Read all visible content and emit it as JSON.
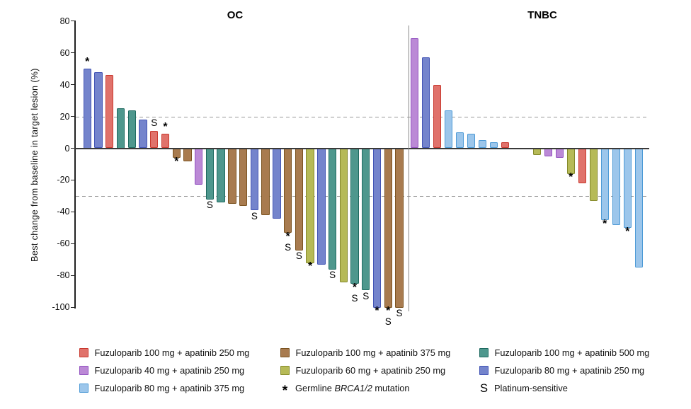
{
  "chart_data": {
    "type": "bar",
    "subtype": "waterfall",
    "title": "",
    "ylabel": "Best change from baseline in target lesion (%)",
    "ylim": [
      -100,
      80
    ],
    "yticks": [
      80,
      60,
      40,
      20,
      0,
      -20,
      -40,
      -60,
      -80,
      -100
    ],
    "reference_lines": [
      20,
      -30
    ],
    "grid": false,
    "groups": [
      {
        "label": "Fuzuloparib 100 mg + apatinib 250 mg",
        "fill": "#e0726b",
        "border": "#c9392f"
      },
      {
        "label": "Fuzuloparib 100 mg + apatinib 375 mg",
        "fill": "#a87b4f",
        "border": "#7b5320"
      },
      {
        "label": "Fuzuloparib 100 mg + apatinib 500 mg",
        "fill": "#4e978d",
        "border": "#1f6b61"
      },
      {
        "label": "Fuzuloparib 40 mg + apatinib 250 mg",
        "fill": "#bb89d6",
        "border": "#9252c0"
      },
      {
        "label": "Fuzuloparib 60 mg + apatinib 250 mg",
        "fill": "#b6ba57",
        "border": "#84892a"
      },
      {
        "label": "Fuzuloparib 80 mg + apatinib 250 mg",
        "fill": "#7484cc",
        "border": "#4254b5"
      },
      {
        "label": "Fuzuloparib 80 mg + apatinib 375 mg",
        "fill": "#9cc6eb",
        "border": "#4d9ad6"
      }
    ],
    "markers": {
      "asterisk": {
        "glyph": "*",
        "label_parts": [
          {
            "text": "Germline "
          },
          {
            "text": "BRCA1/2",
            "italic": true
          },
          {
            "text": " mutation"
          }
        ]
      },
      "platinum": {
        "glyph": "S",
        "label_parts": [
          {
            "text": "Platinum-sensitive"
          }
        ]
      }
    },
    "panels": [
      {
        "title": "OC",
        "bars": [
          {
            "group": 5,
            "value": 50,
            "mark": "*",
            "mark_position": "above"
          },
          {
            "group": 5,
            "value": 48
          },
          {
            "group": 0,
            "value": 46
          },
          {
            "group": 2,
            "value": 25
          },
          {
            "group": 2,
            "value": 24
          },
          {
            "group": 5,
            "value": 18
          },
          {
            "group": 0,
            "value": 11,
            "mark": "S",
            "mark_position": "above"
          },
          {
            "group": 0,
            "value": 9,
            "mark": "*",
            "mark_position": "above"
          },
          {
            "group": 1,
            "value": -6,
            "mark": "*",
            "mark_position": "below"
          },
          {
            "group": 1,
            "value": -8
          },
          {
            "group": 3,
            "value": -23
          },
          {
            "group": 2,
            "value": -32,
            "mark": "S",
            "mark_position": "below"
          },
          {
            "group": 2,
            "value": -34
          },
          {
            "group": 1,
            "value": -35
          },
          {
            "group": 1,
            "value": -36
          },
          {
            "group": 5,
            "value": -39,
            "mark": "S",
            "mark_position": "below"
          },
          {
            "group": 1,
            "value": -42
          },
          {
            "group": 5,
            "value": -44
          },
          {
            "group": 1,
            "value": -53,
            "mark": "*S",
            "mark_position": "below"
          },
          {
            "group": 1,
            "value": -64,
            "mark": "S",
            "mark_position": "below"
          },
          {
            "group": 4,
            "value": -72,
            "mark": "*",
            "mark_position": "below"
          },
          {
            "group": 5,
            "value": -73
          },
          {
            "group": 2,
            "value": -76,
            "mark": "S",
            "mark_position": "below"
          },
          {
            "group": 4,
            "value": -84
          },
          {
            "group": 2,
            "value": -85,
            "mark": "*S",
            "mark_position": "below"
          },
          {
            "group": 2,
            "value": -89,
            "mark": "S",
            "mark_position": "below"
          },
          {
            "group": 5,
            "value": -100,
            "mark": "*",
            "mark_position": "below"
          },
          {
            "group": 1,
            "value": -100,
            "mark": "*S",
            "mark_position": "below"
          },
          {
            "group": 1,
            "value": -100,
            "mark": "S",
            "mark_position": "below"
          }
        ]
      },
      {
        "title": "TNBC",
        "gap_before_index": 9,
        "gap_slots": 1.8,
        "bars": [
          {
            "group": 3,
            "value": 69
          },
          {
            "group": 5,
            "value": 57
          },
          {
            "group": 0,
            "value": 40
          },
          {
            "group": 6,
            "value": 24
          },
          {
            "group": 6,
            "value": 10
          },
          {
            "group": 6,
            "value": 9
          },
          {
            "group": 6,
            "value": 5
          },
          {
            "group": 6,
            "value": 4
          },
          {
            "group": 0,
            "value": 4
          },
          {
            "group": 4,
            "value": -4
          },
          {
            "group": 3,
            "value": -5
          },
          {
            "group": 3,
            "value": -6
          },
          {
            "group": 4,
            "value": -16,
            "mark": "*",
            "mark_position": "below"
          },
          {
            "group": 0,
            "value": -22
          },
          {
            "group": 4,
            "value": -33
          },
          {
            "group": 6,
            "value": -45,
            "mark": "*",
            "mark_position": "below"
          },
          {
            "group": 6,
            "value": -48
          },
          {
            "group": 6,
            "value": -50,
            "mark": "*",
            "mark_position": "below"
          },
          {
            "group": 6,
            "value": -75
          }
        ]
      }
    ]
  },
  "legend": {
    "columns": [
      [
        {
          "type": "group",
          "group": 0
        },
        {
          "type": "group",
          "group": 3
        },
        {
          "type": "group",
          "group": 6
        }
      ],
      [
        {
          "type": "group",
          "group": 1
        },
        {
          "type": "group",
          "group": 4
        },
        {
          "type": "marker",
          "marker": "asterisk"
        }
      ],
      [
        {
          "type": "group",
          "group": 2
        },
        {
          "type": "group",
          "group": 5
        },
        {
          "type": "marker",
          "marker": "platinum"
        }
      ]
    ]
  }
}
